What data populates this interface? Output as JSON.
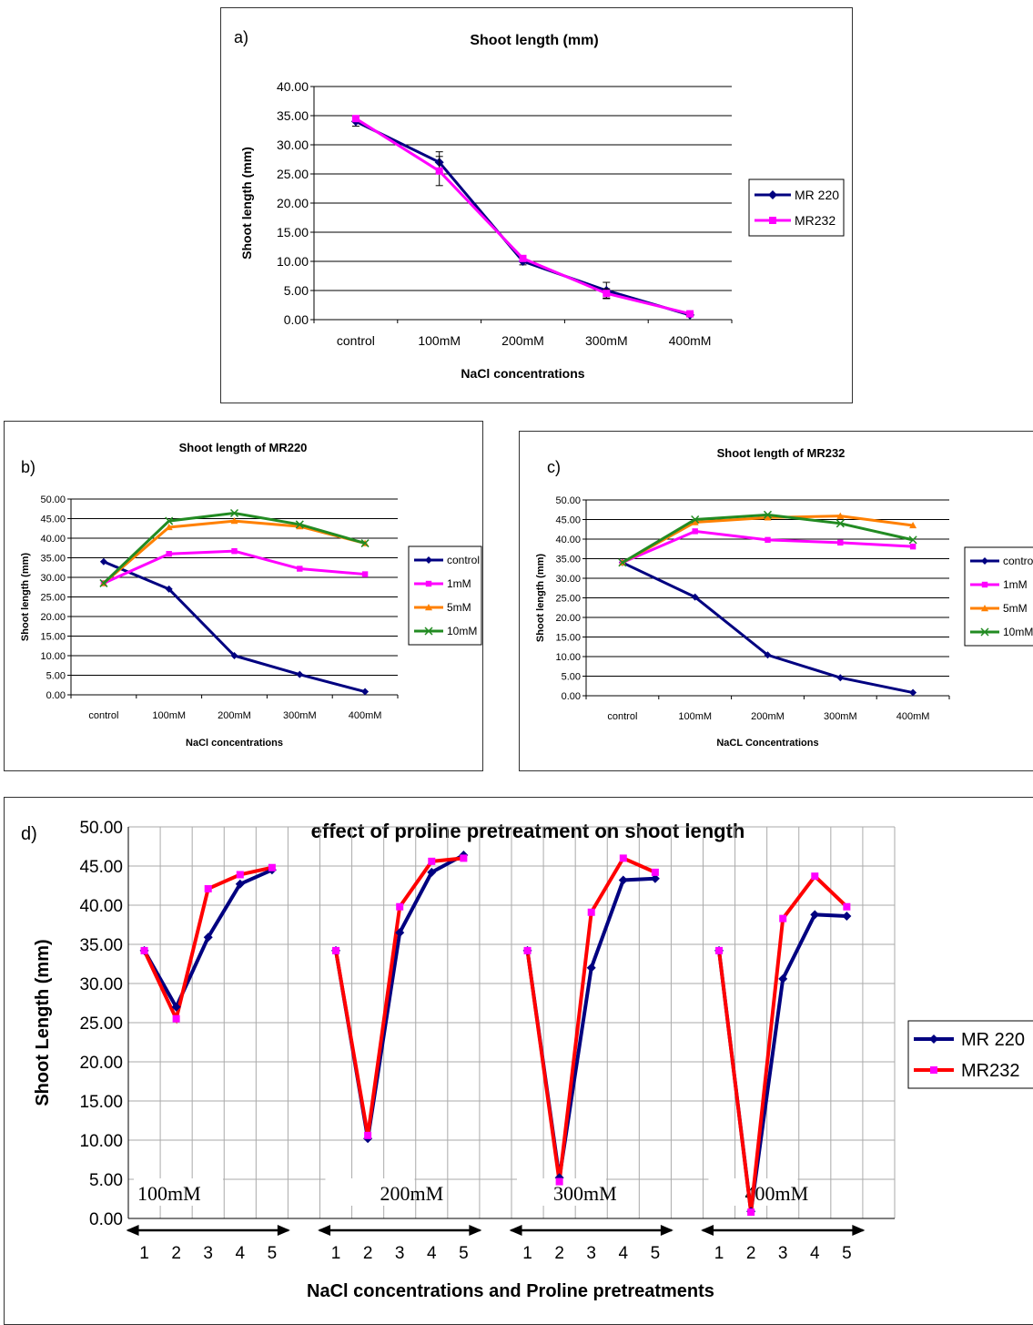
{
  "chart_data": [
    {
      "type": "line",
      "panel_label": "a)",
      "title": "Shoot length (mm)",
      "xlabel": "NaCl concentrations",
      "ylabel": "Shoot length (mm)",
      "categories": [
        "control",
        "100mM",
        "200mM",
        "300mM",
        "400mM"
      ],
      "ylim": [
        0,
        40
      ],
      "yticks": [
        "0.00",
        "5.00",
        "10.00",
        "15.00",
        "20.00",
        "25.00",
        "30.00",
        "35.00",
        "40.00"
      ],
      "grid": "horizontal",
      "legend_position": "right",
      "series": [
        {
          "name": "MR 220",
          "color": "#000080",
          "marker": "diamond",
          "values": [
            34,
            27,
            10,
            5,
            0.8
          ],
          "errors": [
            0.8,
            1.8,
            0.6,
            1.4,
            0.3
          ]
        },
        {
          "name": "MR232",
          "color": "#ff00ff",
          "marker": "square",
          "values": [
            34.5,
            25.5,
            10.5,
            4.5,
            1
          ],
          "errors": [
            0.5,
            2.5,
            0.5,
            0.8,
            0.2
          ]
        }
      ]
    },
    {
      "type": "line",
      "panel_label": "b)",
      "title": "Shoot length of MR220",
      "xlabel": "NaCl concentrations",
      "ylabel": "Shoot length (mm)",
      "categories": [
        "control",
        "100mM",
        "200mM",
        "300mM",
        "400mM"
      ],
      "ylim": [
        0,
        50
      ],
      "yticks": [
        "0.00",
        "5.00",
        "10.00",
        "15.00",
        "20.00",
        "25.00",
        "30.00",
        "35.00",
        "40.00",
        "45.00",
        "50.00"
      ],
      "grid": "horizontal",
      "legend_position": "right",
      "series": [
        {
          "name": "control",
          "color": "#000080",
          "marker": "diamond",
          "values": [
            34,
            27,
            10,
            5.2,
            0.8
          ]
        },
        {
          "name": "1mM",
          "color": "#ff00ff",
          "marker": "square",
          "values": [
            28.5,
            36,
            36.7,
            32.2,
            30.8
          ]
        },
        {
          "name": "5mM",
          "color": "#ff8000",
          "marker": "triangle",
          "values": [
            28.5,
            42.8,
            44.4,
            43,
            38.7
          ]
        },
        {
          "name": "10mM",
          "color": "#228b22",
          "marker": "x",
          "values": [
            28.5,
            44.4,
            46.4,
            43.5,
            38.7
          ]
        }
      ]
    },
    {
      "type": "line",
      "panel_label": "c)",
      "title": "Shoot length of MR232",
      "xlabel": "NaCL Concentrations",
      "ylabel": "Shoot length (mm)",
      "categories": [
        "control",
        "100mM",
        "200mM",
        "300mM",
        "400mM"
      ],
      "ylim": [
        0,
        50
      ],
      "yticks": [
        "0.00",
        "5.00",
        "10.00",
        "15.00",
        "20.00",
        "25.00",
        "30.00",
        "35.00",
        "40.00",
        "45.00",
        "50.00"
      ],
      "grid": "horizontal",
      "legend_position": "right",
      "series": [
        {
          "name": "control",
          "color": "#000080",
          "marker": "diamond",
          "values": [
            34,
            25.2,
            10.4,
            4.6,
            0.8
          ]
        },
        {
          "name": "1mM",
          "color": "#ff00ff",
          "marker": "square",
          "values": [
            34,
            42,
            39.8,
            39.1,
            38.1
          ]
        },
        {
          "name": "5mM",
          "color": "#ff8000",
          "marker": "triangle",
          "values": [
            34,
            44.3,
            45.5,
            45.9,
            43.5
          ]
        },
        {
          "name": "10mM",
          "color": "#228b22",
          "marker": "x",
          "values": [
            34,
            45,
            46.2,
            44,
            39.8
          ]
        }
      ]
    },
    {
      "type": "line",
      "panel_label": "d)",
      "title": "effect of proline pretreatment on shoot length",
      "xlabel": "NaCl concentrations and Proline pretreatments",
      "ylabel": "Shoot Length (mm)",
      "groups": [
        "100mM",
        "200mM",
        "300mM",
        "400mM"
      ],
      "categories": [
        "1",
        "2",
        "3",
        "4",
        "5"
      ],
      "ylim": [
        0,
        50
      ],
      "yticks": [
        "0.00",
        "5.00",
        "10.00",
        "15.00",
        "20.00",
        "25.00",
        "30.00",
        "35.00",
        "40.00",
        "45.00",
        "50.00"
      ],
      "grid": "both",
      "legend_position": "right",
      "series": [
        {
          "name": "MR 220",
          "color": "#000080",
          "marker": "diamond",
          "values": [
            [
              34.2,
              27,
              35.9,
              42.7,
              44.5
            ],
            [
              34.2,
              10.2,
              36.5,
              44.2,
              46.4
            ],
            [
              34.2,
              5.2,
              32,
              43.2,
              43.4
            ],
            [
              34.2,
              0.9,
              30.6,
              38.8,
              38.6
            ]
          ]
        },
        {
          "name": "MR232",
          "color": "#ff0000",
          "marker": "square",
          "values": [
            [
              34.2,
              25.5,
              42.1,
              43.9,
              44.8
            ],
            [
              34.2,
              10.6,
              39.8,
              45.6,
              46
            ],
            [
              34.2,
              4.7,
              39.1,
              46,
              44.2
            ],
            [
              34.2,
              0.8,
              38.3,
              43.7,
              39.8
            ]
          ]
        }
      ]
    }
  ]
}
